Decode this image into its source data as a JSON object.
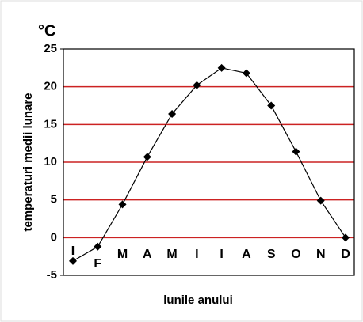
{
  "chart_data": {
    "type": "line",
    "unit": "°C",
    "y_label": "temperaturi medii lunare",
    "x_label": "lunile anului",
    "categories": [
      "I",
      "F",
      "M",
      "A",
      "M",
      "I",
      "I",
      "A",
      "S",
      "O",
      "N",
      "D"
    ],
    "values": [
      -3.1,
      -1.2,
      4.4,
      10.7,
      16.4,
      20.2,
      22.5,
      21.8,
      17.5,
      11.4,
      4.9,
      0
    ],
    "color": "#000000",
    "grid_color": "#cc2222",
    "ylim": [
      -5,
      25
    ],
    "yticks": [
      -5,
      0,
      5,
      10,
      15,
      20,
      25
    ],
    "grid": true
  }
}
